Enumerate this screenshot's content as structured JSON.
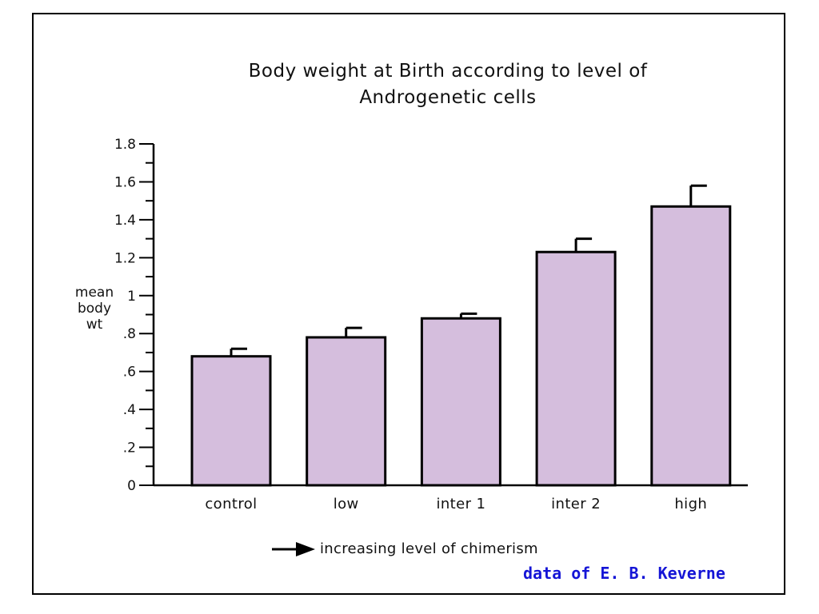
{
  "chart_data": {
    "type": "bar",
    "title": "Body weight at Birth according to level of Androgenetic cells",
    "title_lines": [
      "Body weight at Birth according to level of",
      "Androgenetic cells"
    ],
    "ylabel_lines": [
      "mean",
      "body",
      "wt"
    ],
    "xlabel": "increasing level of chimerism",
    "categories": [
      "control",
      "low",
      "inter 1",
      "inter 2",
      "high"
    ],
    "values": [
      0.68,
      0.78,
      0.88,
      1.23,
      1.47
    ],
    "error": [
      0.04,
      0.05,
      0.025,
      0.07,
      0.11
    ],
    "ylim": [
      0,
      1.8
    ],
    "yticks": [
      {
        "value": 0,
        "label": "0"
      },
      {
        "value": 0.2,
        "label": ".2"
      },
      {
        "value": 0.4,
        "label": ".4"
      },
      {
        "value": 0.6,
        "label": ".6"
      },
      {
        "value": 0.8,
        "label": ".8"
      },
      {
        "value": 1.0,
        "label": "1"
      },
      {
        "value": 1.2,
        "label": "1.2"
      },
      {
        "value": 1.4,
        "label": "1.4"
      },
      {
        "value": 1.6,
        "label": "1.6"
      },
      {
        "value": 1.8,
        "label": "1.8"
      }
    ],
    "minor_tick_step": 0.1,
    "bar_color": "#d5bedd",
    "grid": false,
    "legend": "none"
  },
  "credit": "data of E. B. Keverne",
  "arrow_icon": "right-arrow-icon"
}
